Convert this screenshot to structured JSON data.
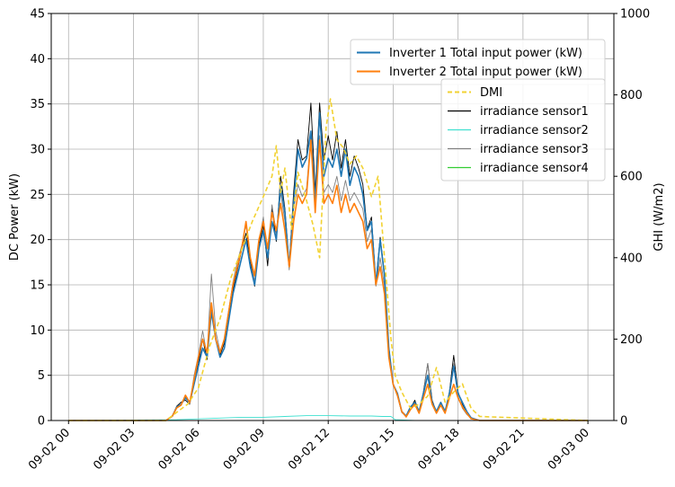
{
  "chart_data": {
    "type": "line",
    "xlabel": "",
    "ylabel": "DC Power (kW)",
    "y2label": "GHI (W/m2)",
    "ylim": [
      0,
      45
    ],
    "y2lim": [
      0,
      1000
    ],
    "xlim": [
      -0.8,
      25.2
    ],
    "grid": true,
    "yticks": [
      0,
      5,
      10,
      15,
      20,
      25,
      30,
      35,
      40,
      45
    ],
    "y2ticks": [
      0,
      200,
      400,
      600,
      800,
      1000
    ],
    "xticks": [
      {
        "hour": 0,
        "label": "09-02 00"
      },
      {
        "hour": 3,
        "label": "09-02 03"
      },
      {
        "hour": 6,
        "label": "09-02 06"
      },
      {
        "hour": 9,
        "label": "09-02 09"
      },
      {
        "hour": 12,
        "label": "09-02 12"
      },
      {
        "hour": 15,
        "label": "09-02 15"
      },
      {
        "hour": 18,
        "label": "09-02 18"
      },
      {
        "hour": 21,
        "label": "09-02 21"
      },
      {
        "hour": 24,
        "label": "09-03 00"
      }
    ],
    "legend_top": {
      "placement": "top-right",
      "entries": [
        "Inverter 1 Total input power (kW)",
        "Inverter 2 Total input power (kW)"
      ]
    },
    "legend_right": {
      "placement": "upper-right",
      "entries": [
        "DMI",
        "irradiance sensor1",
        "irradiance sensor2",
        "irradiance sensor3",
        "irradiance sensor4"
      ]
    },
    "series": [
      {
        "name": "Inverter 1 Total input power (kW)",
        "axis": "left",
        "color": "#1f77b4",
        "width": 1.6,
        "dash": "",
        "x": [
          0,
          4.5,
          4.8,
          5.0,
          5.2,
          5.4,
          5.6,
          5.8,
          6.0,
          6.2,
          6.4,
          6.6,
          6.8,
          7.0,
          7.2,
          7.4,
          7.6,
          7.8,
          8.0,
          8.2,
          8.4,
          8.6,
          8.8,
          9.0,
          9.2,
          9.4,
          9.6,
          9.8,
          10.0,
          10.2,
          10.4,
          10.6,
          10.8,
          11.0,
          11.2,
          11.4,
          11.6,
          11.8,
          12.0,
          12.2,
          12.4,
          12.6,
          12.8,
          13.0,
          13.2,
          13.4,
          13.6,
          13.8,
          14.0,
          14.2,
          14.4,
          14.6,
          14.8,
          15.0,
          15.2,
          15.4,
          15.6,
          15.8,
          16.0,
          16.2,
          16.4,
          16.6,
          16.8,
          17.0,
          17.2,
          17.4,
          17.6,
          17.8,
          18.0,
          18.2,
          18.4,
          18.6,
          19.0,
          24
        ],
        "y": [
          0,
          0,
          0.5,
          1.5,
          1.8,
          2.5,
          2,
          4,
          6,
          8,
          7,
          12,
          9,
          7,
          8,
          11,
          14,
          16,
          18,
          20,
          17,
          15,
          19,
          21,
          18,
          22,
          20,
          26,
          23,
          17,
          24,
          30,
          28,
          29,
          32,
          24,
          34,
          27,
          29,
          28,
          30,
          27,
          30,
          26,
          28,
          27,
          25,
          21,
          22,
          15,
          20,
          16,
          8,
          4,
          3,
          1,
          0.5,
          1.5,
          2,
          1,
          3,
          5,
          2,
          1,
          2,
          1,
          3,
          6,
          3,
          2,
          1,
          0.3,
          0,
          0
        ]
      },
      {
        "name": "Inverter 2 Total input power (kW)",
        "axis": "left",
        "color": "#ff7f0e",
        "width": 1.6,
        "dash": "",
        "x": [
          0,
          4.5,
          4.8,
          5.0,
          5.2,
          5.4,
          5.6,
          5.8,
          6.0,
          6.2,
          6.4,
          6.6,
          6.8,
          7.0,
          7.2,
          7.4,
          7.6,
          7.8,
          8.0,
          8.2,
          8.4,
          8.6,
          8.8,
          9.0,
          9.2,
          9.4,
          9.6,
          9.8,
          10.0,
          10.2,
          10.4,
          10.6,
          10.8,
          11.0,
          11.2,
          11.4,
          11.6,
          11.8,
          12.0,
          12.2,
          12.4,
          12.6,
          12.8,
          13.0,
          13.2,
          13.4,
          13.6,
          13.8,
          14.0,
          14.2,
          14.4,
          14.6,
          14.8,
          15.0,
          15.2,
          15.4,
          15.6,
          15.8,
          16.0,
          16.2,
          16.4,
          16.6,
          16.8,
          17.0,
          17.2,
          17.4,
          17.6,
          17.8,
          18.0,
          18.2,
          18.4,
          18.6,
          19.0,
          24
        ],
        "y": [
          0,
          0,
          0.5,
          1.4,
          1.7,
          2.8,
          2,
          4.5,
          7,
          9,
          7.5,
          13,
          9,
          7.5,
          9,
          12,
          15,
          17,
          19,
          22,
          18,
          16,
          20,
          22,
          19,
          23,
          21,
          24,
          21,
          17,
          22,
          25,
          24,
          25,
          31,
          23,
          31,
          24,
          25,
          24,
          26,
          23,
          25,
          23,
          24,
          23,
          22,
          19,
          20,
          15,
          17,
          14,
          7,
          4,
          2.8,
          1,
          0.4,
          1.2,
          1.8,
          0.8,
          2.5,
          4,
          1.8,
          0.8,
          1.7,
          0.8,
          2.5,
          4,
          2.5,
          1.5,
          0.8,
          0.2,
          0,
          0
        ]
      },
      {
        "name": "DMI",
        "axis": "right",
        "color": "#f2d232",
        "width": 1.6,
        "dash": "5,3",
        "x": [
          0,
          4.5,
          5.0,
          5.5,
          6.0,
          6.5,
          7.0,
          7.5,
          8.0,
          8.5,
          9.0,
          9.4,
          9.6,
          9.8,
          10.0,
          10.3,
          10.6,
          11.0,
          11.3,
          11.6,
          11.9,
          12.1,
          12.4,
          12.7,
          13.0,
          13.3,
          13.6,
          14.0,
          14.3,
          14.6,
          14.9,
          15.1,
          15.4,
          15.8,
          16.2,
          16.6,
          17.0,
          17.4,
          17.8,
          18.2,
          18.6,
          19.0,
          24
        ],
        "y": [
          0,
          0,
          20,
          40,
          80,
          180,
          250,
          350,
          420,
          490,
          550,
          600,
          675,
          560,
          620,
          470,
          610,
          540,
          480,
          400,
          720,
          790,
          690,
          670,
          630,
          650,
          620,
          550,
          600,
          400,
          200,
          110,
          70,
          30,
          40,
          60,
          130,
          45,
          70,
          90,
          30,
          10,
          0
        ]
      },
      {
        "name": "irradiance sensor1",
        "axis": "right",
        "color": "#000000",
        "width": 0.9,
        "dash": "",
        "x": [
          0,
          4.5,
          4.8,
          5.0,
          5.2,
          5.4,
          5.6,
          5.8,
          6.0,
          6.2,
          6.4,
          6.6,
          6.8,
          7.0,
          7.2,
          7.4,
          7.6,
          7.8,
          8.0,
          8.2,
          8.4,
          8.6,
          8.8,
          9.0,
          9.2,
          9.4,
          9.6,
          9.8,
          10.0,
          10.2,
          10.4,
          10.6,
          10.8,
          11.0,
          11.2,
          11.4,
          11.6,
          11.8,
          12.0,
          12.2,
          12.4,
          12.6,
          12.8,
          13.0,
          13.2,
          13.4,
          13.6,
          13.8,
          14.0,
          14.2,
          14.4,
          14.6,
          14.8,
          15.0,
          15.2,
          15.4,
          15.6,
          15.8,
          16.0,
          16.2,
          16.4,
          16.6,
          16.8,
          17.0,
          17.2,
          17.4,
          17.6,
          17.8,
          18.0,
          18.2,
          18.4,
          18.6,
          19.0,
          24
        ],
        "y": [
          0,
          0,
          10,
          35,
          45,
          50,
          40,
          100,
          140,
          200,
          150,
          280,
          200,
          160,
          190,
          250,
          320,
          370,
          420,
          460,
          390,
          330,
          430,
          480,
          380,
          520,
          440,
          600,
          520,
          380,
          560,
          690,
          640,
          650,
          780,
          560,
          780,
          640,
          700,
          640,
          710,
          620,
          690,
          600,
          650,
          620,
          580,
          470,
          500,
          340,
          450,
          360,
          180,
          90,
          60,
          20,
          10,
          30,
          50,
          20,
          70,
          140,
          50,
          20,
          45,
          20,
          70,
          160,
          70,
          40,
          20,
          5,
          0,
          0
        ]
      },
      {
        "name": "irradiance sensor2",
        "axis": "right",
        "color": "#40e0d0",
        "width": 0.9,
        "dash": "",
        "x": [
          0,
          5.0,
          6.0,
          7.0,
          8.0,
          9.0,
          10.0,
          11.0,
          12.0,
          13.0,
          14.0,
          14.5,
          14.9,
          15.1,
          16.0,
          24
        ],
        "y": [
          0,
          2,
          4,
          6,
          8,
          8,
          10,
          12,
          12,
          11,
          11,
          10,
          10,
          2,
          0,
          0
        ]
      },
      {
        "name": "irradiance sensor3",
        "axis": "right",
        "color": "#808080",
        "width": 0.9,
        "dash": "",
        "x": [
          0,
          4.5,
          4.8,
          5.0,
          5.2,
          5.4,
          5.6,
          5.8,
          6.0,
          6.2,
          6.4,
          6.6,
          6.8,
          7.0,
          7.2,
          7.4,
          7.6,
          7.8,
          8.0,
          8.2,
          8.4,
          8.6,
          8.8,
          9.0,
          9.2,
          9.4,
          9.6,
          9.8,
          10.0,
          10.2,
          10.4,
          10.6,
          10.8,
          11.0,
          11.2,
          11.4,
          11.6,
          11.8,
          12.0,
          12.2,
          12.4,
          12.6,
          12.8,
          13.0,
          13.2,
          13.4,
          13.6,
          13.8,
          14.0,
          14.2,
          14.4,
          14.6,
          14.8,
          15.0,
          15.2,
          15.4,
          15.6,
          15.8,
          16.0,
          16.2,
          16.4,
          16.6,
          16.8,
          17.0,
          17.2,
          17.4,
          17.6,
          17.8,
          18.0,
          18.2,
          18.4,
          18.6,
          19.0,
          24
        ],
        "y": [
          0,
          0,
          10,
          30,
          40,
          60,
          40,
          110,
          160,
          220,
          160,
          360,
          220,
          170,
          200,
          270,
          340,
          390,
          430,
          480,
          400,
          340,
          440,
          500,
          400,
          530,
          460,
          560,
          490,
          370,
          520,
          580,
          550,
          570,
          700,
          510,
          700,
          560,
          580,
          560,
          600,
          540,
          590,
          540,
          560,
          540,
          520,
          440,
          470,
          330,
          400,
          330,
          170,
          90,
          60,
          20,
          10,
          30,
          45,
          20,
          65,
          140,
          45,
          20,
          40,
          20,
          60,
          140,
          60,
          30,
          15,
          5,
          0,
          0
        ]
      },
      {
        "name": "irradiance sensor4",
        "axis": "right",
        "color": "#32cd32",
        "width": 0.9,
        "dash": "",
        "x": [
          0,
          24
        ],
        "y": [
          0,
          0
        ]
      }
    ]
  }
}
